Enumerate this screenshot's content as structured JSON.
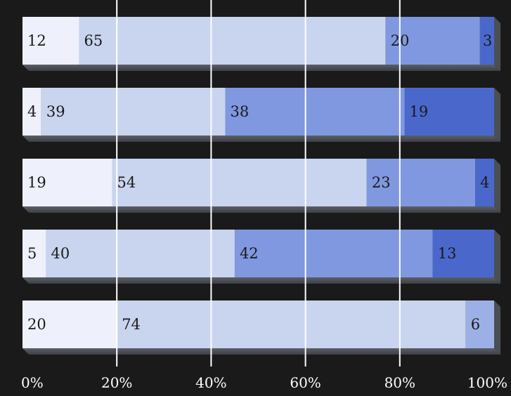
{
  "chart_data": {
    "type": "bar",
    "orientation": "horizontal",
    "stacked": true,
    "title": "",
    "xlabel": "",
    "ylabel": "",
    "xlim": [
      0,
      100
    ],
    "grid": true,
    "legend": "none",
    "x_ticks": [
      "0%",
      "20%",
      "40%",
      "60%",
      "80%",
      "100%"
    ],
    "segment_colors": [
      "#eef1fb",
      "#c9d4ef",
      "#7f98df",
      "#4a68cc"
    ],
    "rows": [
      {
        "values": [
          12,
          65,
          20,
          3
        ]
      },
      {
        "values": [
          4,
          39,
          38,
          19
        ]
      },
      {
        "values": [
          19,
          54,
          23,
          4
        ]
      },
      {
        "values": [
          5,
          40,
          42,
          13
        ]
      },
      {
        "values": [
          20,
          74,
          6
        ]
      }
    ]
  }
}
